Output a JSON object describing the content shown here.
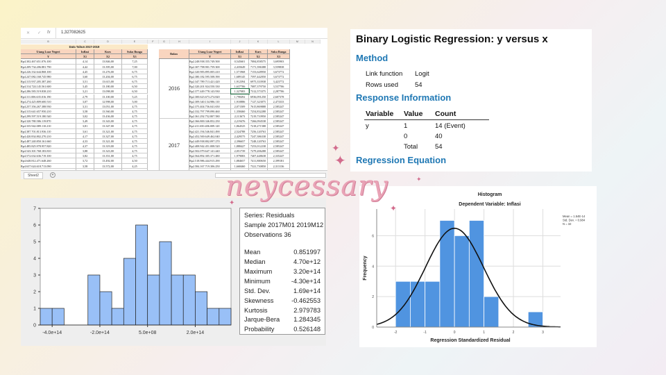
{
  "spreadsheet": {
    "formula_value": "1,327082625",
    "columns": [
      "B",
      "C",
      "D",
      "E",
      "F",
      "G",
      "H",
      "I",
      "J",
      "K",
      "L",
      "M",
      "N"
    ],
    "left_title": "Data Tahun 2017-2019",
    "left_headers": [
      "Utang Luar Negeri",
      "Inflasi",
      "Kurs",
      "Suku Bunga"
    ],
    "left_sub": [
      "Y",
      "X1",
      "X2",
      "X3"
    ],
    "left_rows": [
      [
        "Rp4.302.467.651.076.100",
        "4,14",
        "13.846,00",
        "7,25"
      ],
      [
        "Rp4.209.734.206.881.790",
        "4,42",
        "13.395,00",
        "7,00"
      ],
      [
        "Rp4.226.332.644.868.100",
        "4,45",
        "13.276,00",
        "6,75"
      ],
      [
        "Rp4.247.082.168.745.980",
        "3,60",
        "13.204,00",
        "6,75"
      ],
      [
        "Rp4.315.937.205.387.260",
        "3,51",
        "13.615,00",
        "6,75"
      ],
      [
        "Rp4.314.724.145.561.600",
        "3,45",
        "13.180,00",
        "6,50"
      ],
      [
        "Rp4.286.583.519.838.210",
        "3,21",
        "13.098,00",
        "6,50"
      ],
      [
        "Rp4.311.006.635.016.190",
        "2,79",
        "13.100,00",
        "5,25"
      ],
      [
        "Rp4.274.425.809.600.510",
        "3,07",
        "12.998,00",
        "5,00"
      ],
      [
        "Rp4.257.356.267.388.930",
        "3,31",
        "13.051,00",
        "4,75"
      ],
      [
        "Rp4.315.641.657.950.210",
        "3,58",
        "13.560,00",
        "4,75"
      ],
      [
        "Rp4.299.597.519.180.540",
        "3,02",
        "13.436,00",
        "4,75"
      ],
      [
        "Rp4.320.780.586.119.870",
        "3,49",
        "13.343,00",
        "4,75"
      ],
      [
        "Rp4.335.942.089.110.210",
        "3,81",
        "13.347,00",
        "4,75"
      ],
      [
        "Rp4.387.701.813.936.110",
        "3,61",
        "13.321,00",
        "4,75"
      ],
      [
        "Rp4.420.834.802.270.210",
        "4,17",
        "13.327,00",
        "4,75"
      ],
      [
        "Rp4.487.240.850.161.660",
        "4,33",
        "13.321,00",
        "4,75"
      ],
      [
        "Rp4.485.825.978.957.820",
        "4,37",
        "13.319,00",
        "4,75"
      ],
      [
        "Rp4.543.301.768.183.810",
        "3,88",
        "13.323,00",
        "4,75"
      ],
      [
        "Rp4.572.632.636.719.100",
        "3,82",
        "13.351,00",
        "4,75"
      ],
      [
        "Rp4.648.812.471.648.260",
        "3,72",
        "13.492,00",
        "4,50"
      ],
      [
        "Rp4.637.624.618.713.090",
        "3,58",
        "13.572,00",
        "4,25"
      ],
      [
        "Rp4.697.907.169.087.010",
        "3,10",
        "13.514,00",
        "4,25"
      ]
    ],
    "right_headers": [
      "Bulan",
      "Utang Luar Negeri",
      "Inflasi",
      "Kurs",
      "Suku Bunga"
    ],
    "right_sub": [
      "Y",
      "X1",
      "X2",
      "X3"
    ],
    "years": [
      "2016",
      "2017"
    ],
    "right_rows": [
      [
        "Rp2.248.938.355.749.500",
        "0,545601",
        "7084,858575",
        "3,695903"
      ],
      [
        "Rp2.307.798.901.759.300",
        "2,435649",
        "7171,396388",
        "3,559838"
      ],
      [
        "Rp2.320.983.895.005.410",
        "1,571968",
        "7153,628950",
        "3,673772"
      ],
      [
        "Rp2.380.182.595.508.390",
        "1,689145",
        "7597,442050",
        "3,673772"
      ],
      [
        "Rp2.347.789.713.421.420",
        "1,912394",
        "6975,333938",
        "3,423772"
      ],
      [
        "Rp2.320.201.924.550.330",
        "1,637706",
        "7087,379750",
        "3,537706"
      ],
      [
        "Rp2.377.449.778.143.930",
        "1,327083",
        "7312,573375",
        "2,287706"
      ],
      [
        "Rp2.300.623.673.274.820",
        "1,798492",
        "6936,091250",
        "2,607378"
      ],
      [
        "Rp2.309.340.134.986.110",
        "1,910886",
        "7127,323075",
        "2,473333"
      ],
      [
        "Rp2.375.404.756.041.650",
        "2,071509",
        "7615,869888",
        "2,585247"
      ],
      [
        "Rp2.332.797.799.090.460",
        "1,358460",
        "7254,832288",
        "2,585247"
      ],
      [
        "Rp2.361.292.752.807.580",
        "2,113673",
        "7219,710950",
        "2,585247"
      ],
      [
        "Rp2.366.800.346.852.250",
        "2,219476",
        "7266,094538",
        "2,585247"
      ],
      [
        "Rp2.411.650.406.009.120",
        "1,864525",
        "7218,271588",
        "2,585247"
      ],
      [
        "Rp2.421.194.546.841.490",
        "2,524788",
        "7256,120763",
        "2,585247"
      ],
      [
        "Rp2.452.500.649.462.040",
        "2,429575",
        "7247,386338",
        "2,585247"
      ],
      [
        "Rp2.449.938.802.097.270",
        "2,396657",
        "7248,120763",
        "2,585247"
      ],
      [
        "Rp2.408.942.451.008.520",
        "1,888427",
        "7253,012238",
        "2,585247"
      ],
      [
        "Rp2.502.079.647.141.440",
        "2,051739",
        "7279,206288",
        "2,585247"
      ],
      [
        "Rp2.564.892.305.371.480",
        "1,979083",
        "7407,448638",
        "2,335247"
      ],
      [
        "Rp2.518.986.444.915.290",
        "1,884657",
        "7411,800650",
        "2,399181"
      ],
      [
        "Rp2.584.167.719.306.250",
        "1,668460",
        "7321,730850",
        "2,313136"
      ],
      [
        "Rp2.634.232.629.219.760",
        "2,106066",
        "7389,863425",
        "2,313136"
      ]
    ],
    "sheet_tab": "Sheet2",
    "add_sheet": "+"
  },
  "regression": {
    "title": "Binary Logistic Regression: y versus x",
    "method_heading": "Method",
    "link_label": "Link function",
    "link_value": "Logit",
    "rows_label": "Rows used",
    "rows_value": "54",
    "response_heading": "Response Information",
    "table_headers": [
      "Variable",
      "Value",
      "Count"
    ],
    "table_rows": [
      [
        "y",
        "1",
        "14 (Event)"
      ],
      [
        "",
        "0",
        "40"
      ],
      [
        "",
        "Total",
        "54"
      ]
    ],
    "equation_heading": "Regression Equation"
  },
  "eviews_stats": {
    "series": "Series: Residuals",
    "sample": "Sample 2017M01 2019M12",
    "observations": "Observations 36",
    "rows": [
      [
        "Mean",
        "0.851997"
      ],
      [
        "Median",
        "4.70e+12"
      ],
      [
        "Maximum",
        "3.20e+14"
      ],
      [
        "Minimum",
        "-4.30e+14"
      ],
      [
        "Std. Dev.",
        "1.69e+14"
      ],
      [
        "Skewness",
        "-0.462553"
      ],
      [
        "Kurtosis",
        "2.979783"
      ]
    ],
    "jb_rows": [
      [
        "Jarque-Bera",
        "1.284345"
      ],
      [
        "Probability",
        "0.526148"
      ]
    ]
  },
  "watermark": "neycessary",
  "chart_data": [
    {
      "type": "bar",
      "id": "eviews",
      "bin_start": -450000000000000.0,
      "bin_width": 50000000000000.0,
      "values": [
        1,
        1,
        0,
        0,
        3,
        2,
        1,
        4,
        6,
        3,
        5,
        3,
        3,
        2,
        1,
        1
      ],
      "xlim": [
        -450000000000000.0,
        350000000000000.0
      ],
      "ylim": [
        0,
        7
      ],
      "xticks": [
        {
          "v": -400000000000000.0,
          "label": "-4.0e+14"
        },
        {
          "v": -200000000000000.0,
          "label": "-2.0e+14"
        },
        {
          "v": 500000000.0,
          "label": "5.0e+08"
        },
        {
          "v": 200000000000000.0,
          "label": "2.0e+14"
        }
      ],
      "yticks": [
        0,
        1,
        2,
        3,
        4,
        5,
        6,
        7
      ],
      "bar_color": "#99c0f7",
      "grid": false
    },
    {
      "type": "bar",
      "id": "spss",
      "title": "Histogram",
      "subtitle": "Dependent Variable: Inflasi",
      "xlabel": "Regression Standardized Residual",
      "ylabel": "Frequency",
      "bin_start": -2,
      "bin_width": 0.5,
      "values": [
        3,
        3,
        3,
        7,
        6,
        7,
        2,
        0,
        0,
        1
      ],
      "xlim": [
        -2.64,
        3.6
      ],
      "ylim": [
        0,
        7.75
      ],
      "xticks": [
        -2,
        -1,
        0,
        1,
        2,
        3
      ],
      "yticks": [
        0,
        2,
        4,
        6
      ],
      "legend": [
        "Mean = 1.54E-14",
        "Std. Dev. = 0.984",
        "N = 32"
      ],
      "normal_curve": {
        "mean": 0,
        "sd": 0.984,
        "n": 32
      },
      "bar_color": "#5094e0",
      "grid": true
    }
  ]
}
